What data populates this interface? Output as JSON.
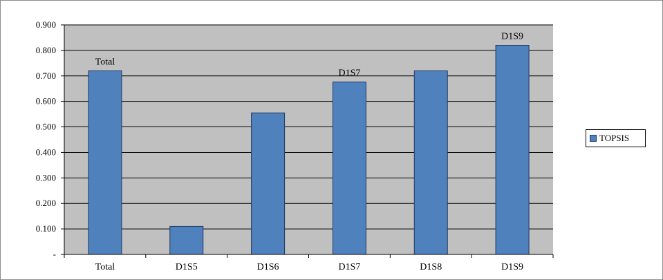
{
  "chart_data": {
    "type": "bar",
    "categories": [
      "Total",
      "D1S5",
      "D1S6",
      "D1S7",
      "D1S8",
      "D1S9"
    ],
    "series": [
      {
        "name": "TOPSIS",
        "values": [
          0.72,
          0.11,
          0.555,
          0.676,
          0.72,
          0.82
        ]
      }
    ],
    "data_labels": [
      "Total",
      "",
      "",
      "D1S7",
      "",
      "D1S9"
    ],
    "ytick_labels": [
      "-",
      "0.100",
      "0.200",
      "0.300",
      "0.400",
      "0.500",
      "0.600",
      "0.700",
      "0.800",
      "0.900"
    ],
    "ylim": [
      0,
      0.9
    ],
    "grid": true,
    "legend_position": "right",
    "colors": {
      "bar": "#4f81bd",
      "bar_border": "#1f3864",
      "plot_bg": "#c0c0c0",
      "grid": "#000000"
    }
  }
}
